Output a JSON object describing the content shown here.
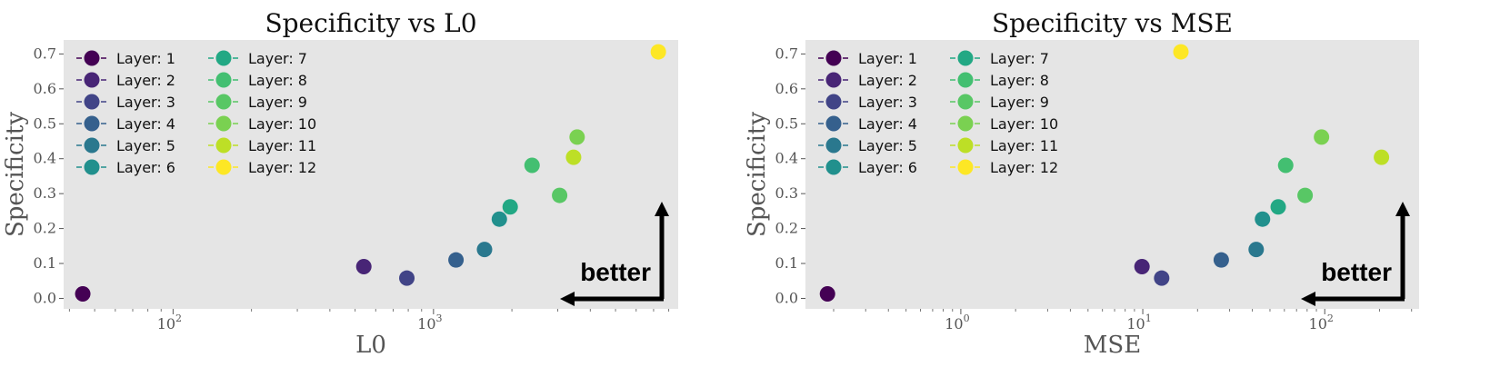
{
  "chart_data": [
    {
      "type": "scatter",
      "title": "Specificity vs L0",
      "xlabel": "L0",
      "ylabel": "Specificity",
      "xscale": "log",
      "xlim": [
        38,
        8700
      ],
      "ylim": [
        -0.03,
        0.74
      ],
      "yticks": [
        0.0,
        0.1,
        0.2,
        0.3,
        0.4,
        0.5,
        0.6,
        0.7
      ],
      "ytick_labels": [
        "0.0",
        "0.1",
        "0.2",
        "0.3",
        "0.4",
        "0.5",
        "0.6",
        "0.7"
      ],
      "xticks": [
        {
          "value": 100,
          "base": "10",
          "exp": "2"
        },
        {
          "value": 1000,
          "base": "10",
          "exp": "3"
        }
      ],
      "grid": false,
      "legend": "top-left",
      "annotation": "better",
      "series": [
        {
          "name": "Layer: 1",
          "color": "#440154",
          "x": 45,
          "y": 0.013
        },
        {
          "name": "Layer: 2",
          "color": "#482576",
          "x": 540,
          "y": 0.091
        },
        {
          "name": "Layer: 3",
          "color": "#414487",
          "x": 790,
          "y": 0.058
        },
        {
          "name": "Layer: 4",
          "color": "#35608d",
          "x": 1220,
          "y": 0.11
        },
        {
          "name": "Layer: 5",
          "color": "#2a788e",
          "x": 1570,
          "y": 0.14
        },
        {
          "name": "Layer: 6",
          "color": "#21908d",
          "x": 1790,
          "y": 0.227
        },
        {
          "name": "Layer: 7",
          "color": "#22a884",
          "x": 1970,
          "y": 0.262
        },
        {
          "name": "Layer: 8",
          "color": "#43bf71",
          "x": 2390,
          "y": 0.381
        },
        {
          "name": "Layer: 9",
          "color": "#58c765",
          "x": 3050,
          "y": 0.295
        },
        {
          "name": "Layer: 10",
          "color": "#7ad151",
          "x": 3560,
          "y": 0.462
        },
        {
          "name": "Layer: 11",
          "color": "#bddf26",
          "x": 3450,
          "y": 0.404
        },
        {
          "name": "Layer: 12",
          "color": "#fde725",
          "x": 7300,
          "y": 0.706
        }
      ]
    },
    {
      "type": "scatter",
      "title": "Specificity vs MSE",
      "xlabel": "MSE",
      "ylabel": "Specificity",
      "xscale": "log",
      "xlim": [
        0.14,
        330
      ],
      "ylim": [
        -0.03,
        0.74
      ],
      "yticks": [
        0.0,
        0.1,
        0.2,
        0.3,
        0.4,
        0.5,
        0.6,
        0.7
      ],
      "ytick_labels": [
        "0.0",
        "0.1",
        "0.2",
        "0.3",
        "0.4",
        "0.5",
        "0.6",
        "0.7"
      ],
      "xticks": [
        {
          "value": 1,
          "base": "10",
          "exp": "0"
        },
        {
          "value": 10,
          "base": "10",
          "exp": "1"
        },
        {
          "value": 100,
          "base": "10",
          "exp": "2"
        }
      ],
      "grid": false,
      "legend": "top-left",
      "annotation": "better",
      "series": [
        {
          "name": "Layer: 1",
          "color": "#440154",
          "x": 0.185,
          "y": 0.013
        },
        {
          "name": "Layer: 2",
          "color": "#482576",
          "x": 9.9,
          "y": 0.091
        },
        {
          "name": "Layer: 3",
          "color": "#414487",
          "x": 12.7,
          "y": 0.058
        },
        {
          "name": "Layer: 4",
          "color": "#35608d",
          "x": 27,
          "y": 0.11
        },
        {
          "name": "Layer: 5",
          "color": "#2a788e",
          "x": 42,
          "y": 0.14
        },
        {
          "name": "Layer: 6",
          "color": "#21908d",
          "x": 45.5,
          "y": 0.227
        },
        {
          "name": "Layer: 7",
          "color": "#22a884",
          "x": 55.5,
          "y": 0.262
        },
        {
          "name": "Layer: 8",
          "color": "#43bf71",
          "x": 61,
          "y": 0.381
        },
        {
          "name": "Layer: 9",
          "color": "#58c765",
          "x": 78,
          "y": 0.295
        },
        {
          "name": "Layer: 10",
          "color": "#7ad151",
          "x": 96,
          "y": 0.462
        },
        {
          "name": "Layer: 11",
          "color": "#bddf26",
          "x": 205,
          "y": 0.404
        },
        {
          "name": "Layer: 12",
          "color": "#fde725",
          "x": 16.2,
          "y": 0.706
        }
      ]
    }
  ]
}
